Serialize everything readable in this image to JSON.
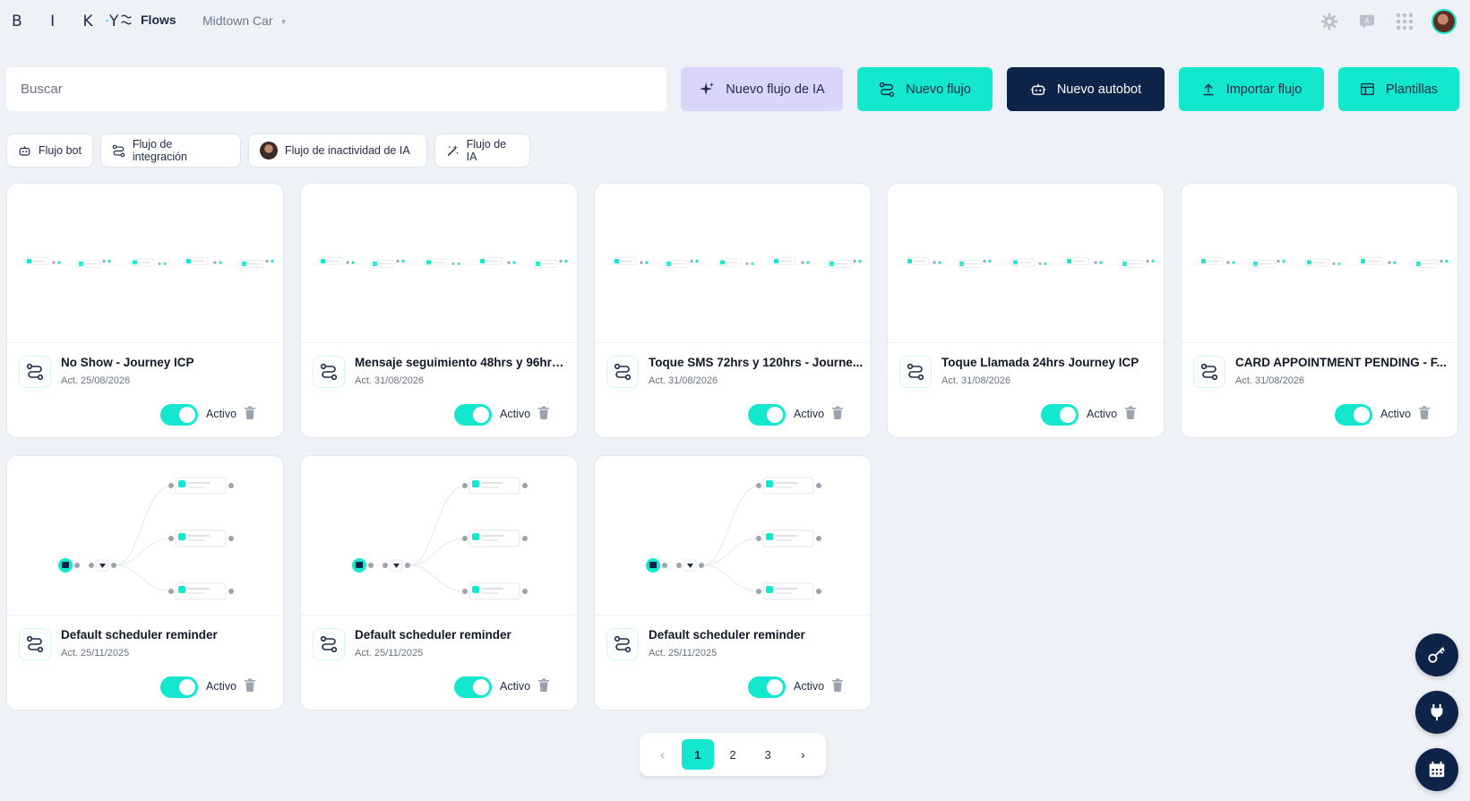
{
  "header": {
    "logo_text": "BIKY",
    "nav_flows_label": "Flows",
    "account_name": "Midtown Car"
  },
  "search": {
    "placeholder": "Buscar"
  },
  "actions": {
    "new_ai_flow": "Nuevo flujo de IA",
    "new_flow": "Nuevo flujo",
    "new_autobot": "Nuevo autobot",
    "import_flow": "Importar flujo",
    "templates": "Plantillas"
  },
  "filters": [
    {
      "label": "Flujo bot"
    },
    {
      "label": "Flujo de integración"
    },
    {
      "label": "Flujo de inactividad de IA"
    },
    {
      "label": "Flujo de IA"
    }
  ],
  "flows": [
    {
      "title": "No Show - Journey ICP",
      "date": "Act. 25/08/2026",
      "status": "Activo",
      "active": true,
      "preview": "linear"
    },
    {
      "title": "Mensaje seguimiento 48hrs y 96hrs ...",
      "date": "Act. 31/08/2026",
      "status": "Activo",
      "active": true,
      "preview": "linear"
    },
    {
      "title": "Toque SMS 72hrs y 120hrs - Journe...",
      "date": "Act. 31/08/2026",
      "status": "Activo",
      "active": true,
      "preview": "linear"
    },
    {
      "title": "Toque Llamada 24hrs Journey ICP",
      "date": "Act. 31/08/2026",
      "status": "Activo",
      "active": true,
      "preview": "linear"
    },
    {
      "title": "CARD APPOINTMENT PENDING - F...",
      "date": "Act. 31/08/2026",
      "status": "Activo",
      "active": true,
      "preview": "linear"
    },
    {
      "title": "Default scheduler reminder",
      "date": "Act. 25/11/2025",
      "status": "Activo",
      "active": true,
      "preview": "branch"
    },
    {
      "title": "Default scheduler reminder",
      "date": "Act. 25/11/2025",
      "status": "Activo",
      "active": true,
      "preview": "branch"
    },
    {
      "title": "Default scheduler reminder",
      "date": "Act. 25/11/2025",
      "status": "Activo",
      "active": true,
      "preview": "branch"
    }
  ],
  "pagination": {
    "prev": "‹",
    "pages": [
      "1",
      "2",
      "3"
    ],
    "current": "1",
    "next": "›"
  },
  "icons": {
    "top": [
      "settings-icon",
      "translate-icon",
      "apps-grid-icon"
    ],
    "fab": [
      "key-icon",
      "plug-icon",
      "calendar-icon"
    ]
  },
  "colors": {
    "accent": "#13e8cf",
    "navy": "#0d2347",
    "ai_button": "#d9d5fb",
    "background": "#eef1f6"
  }
}
